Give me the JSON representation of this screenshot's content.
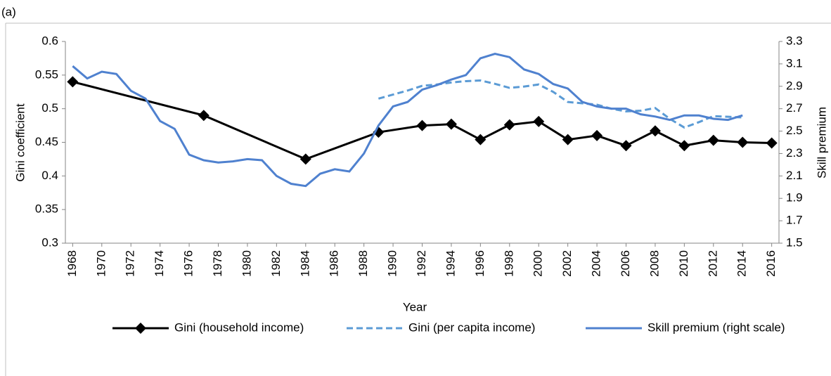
{
  "chart_data": {
    "type": "line",
    "panel_label": "(a)",
    "xlabel": "Year",
    "ylabel": "Gini coefficient",
    "y2label": "Skill premium",
    "xlim": [
      1967.5,
      2016.5
    ],
    "xticks": [
      1968,
      1970,
      1972,
      1974,
      1976,
      1978,
      1980,
      1982,
      1984,
      1986,
      1988,
      1990,
      1992,
      1994,
      1996,
      1998,
      2000,
      2002,
      2004,
      2006,
      2008,
      2010,
      2012,
      2014,
      2016
    ],
    "ylim": [
      0.3,
      0.6
    ],
    "yticks": [
      0.3,
      0.35,
      0.4,
      0.45,
      0.5,
      0.55,
      0.6
    ],
    "y2lim": [
      1.5,
      3.3
    ],
    "y2ticks": [
      1.5,
      1.7,
      1.9,
      2.1,
      2.3,
      2.5,
      2.7,
      2.9,
      3.1,
      3.3
    ],
    "grid": false,
    "legend": "bottom",
    "series": [
      {
        "name": "Gini (household income)",
        "color": "#000000",
        "marker": "diamond",
        "dash": false,
        "x": [
          1968,
          1977,
          1984,
          1989,
          1992,
          1994,
          1996,
          1998,
          2000,
          2002,
          2004,
          2006,
          2008,
          2010,
          2012,
          2014,
          2016
        ],
        "values": [
          0.54,
          0.49,
          0.425,
          0.465,
          0.475,
          0.477,
          0.454,
          0.476,
          0.481,
          0.454,
          0.46,
          0.445,
          0.467,
          0.445,
          0.453,
          0.45,
          0.449
        ]
      },
      {
        "name": "Gini (per capita income)",
        "color": "#5b9bd5",
        "marker": "none",
        "dash": true,
        "x": [
          1989,
          1990,
          1991,
          1992,
          1993,
          1994,
          1995,
          1996,
          1997,
          1998,
          1999,
          2000,
          2001,
          2002,
          2003,
          2004,
          2005,
          2006,
          2007,
          2008,
          2009,
          2010,
          2011,
          2012,
          2013,
          2014
        ],
        "values": [
          0.515,
          0.521,
          0.527,
          0.534,
          0.536,
          0.539,
          0.541,
          0.542,
          0.537,
          0.531,
          0.533,
          0.536,
          0.525,
          0.51,
          0.508,
          0.506,
          0.5,
          0.496,
          0.497,
          0.501,
          0.485,
          0.472,
          0.48,
          0.489,
          0.488,
          0.487
        ]
      },
      {
        "name": "Skill premium (right scale)",
        "color": "#4f81cf",
        "marker": "none",
        "dash": false,
        "axis": "y2",
        "x": [
          1968,
          1969,
          1970,
          1971,
          1972,
          1973,
          1974,
          1975,
          1976,
          1977,
          1978,
          1979,
          1980,
          1981,
          1982,
          1983,
          1984,
          1985,
          1986,
          1987,
          1988,
          1989,
          1990,
          1991,
          1992,
          1993,
          1994,
          1995,
          1996,
          1997,
          1998,
          1999,
          2000,
          2001,
          2002,
          2003,
          2004,
          2005,
          2006,
          2007,
          2008,
          2009,
          2010,
          2011,
          2012,
          2013,
          2014
        ],
        "values": [
          3.08,
          2.97,
          3.03,
          3.01,
          2.86,
          2.79,
          2.59,
          2.52,
          2.29,
          2.24,
          2.22,
          2.23,
          2.25,
          2.24,
          2.1,
          2.03,
          2.01,
          2.12,
          2.16,
          2.14,
          2.3,
          2.55,
          2.72,
          2.76,
          2.87,
          2.91,
          2.96,
          3.0,
          3.15,
          3.19,
          3.16,
          3.05,
          3.01,
          2.92,
          2.88,
          2.76,
          2.72,
          2.7,
          2.7,
          2.65,
          2.63,
          2.6,
          2.64,
          2.64,
          2.61,
          2.6,
          2.64
        ]
      }
    ]
  }
}
